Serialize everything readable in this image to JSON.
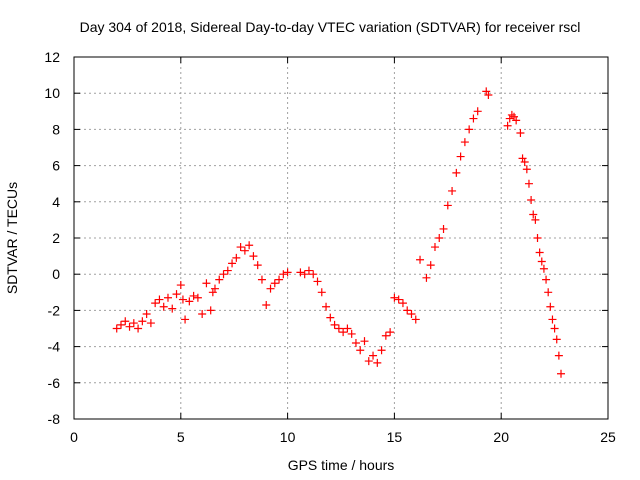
{
  "chart_data": {
    "type": "scatter",
    "title": "Day 304 of 2018, Sidereal Day-to-day VTEC variation (SDTVAR) for receiver rscl",
    "xlabel": "GPS time / hours",
    "ylabel": "SDTVAR / TECUs",
    "xlim": [
      0,
      25
    ],
    "ylim": [
      -8,
      12
    ],
    "xticks": [
      "0",
      "5",
      "10",
      "15",
      "20",
      "25"
    ],
    "yticks": [
      "-8",
      "-6",
      "-4",
      "-2",
      "0",
      "2",
      "4",
      "6",
      "8",
      "10",
      "12"
    ],
    "grid": true,
    "marker": "+",
    "series": [
      {
        "color": "#ff0000",
        "x": [
          2.0,
          2.2,
          2.4,
          2.6,
          2.8,
          3.0,
          3.2,
          3.4,
          3.6,
          3.8,
          4.0,
          4.2,
          4.4,
          4.6,
          4.8,
          5.0,
          5.1,
          5.2,
          5.4,
          5.6,
          5.8,
          6.0,
          6.2,
          6.4,
          6.5,
          6.6,
          6.8,
          7.0,
          7.2,
          7.4,
          7.6,
          7.8,
          8.0,
          8.2,
          8.4,
          8.6,
          8.8,
          9.0,
          9.2,
          9.4,
          9.6,
          9.8,
          10.0,
          10.6,
          10.8,
          11.0,
          11.2,
          11.4,
          11.6,
          11.8,
          12.0,
          12.2,
          12.4,
          12.6,
          12.8,
          13.0,
          13.2,
          13.4,
          13.6,
          13.8,
          14.0,
          14.2,
          14.4,
          14.6,
          14.8,
          15.0,
          15.2,
          15.4,
          15.6,
          15.8,
          16.0,
          16.2,
          16.5,
          16.7,
          16.9,
          17.1,
          17.3,
          17.5,
          17.7,
          17.9,
          18.1,
          18.3,
          18.5,
          18.7,
          18.9,
          19.3,
          19.4,
          20.3,
          20.4,
          20.5,
          20.6,
          20.7,
          20.9,
          21.0,
          21.1,
          21.2,
          21.3,
          21.4,
          21.5,
          21.6,
          21.7,
          21.8,
          21.9,
          22.0,
          22.1,
          22.2,
          22.3,
          22.4,
          22.5,
          22.6,
          22.7,
          22.8
        ],
        "y": [
          -3.0,
          -2.8,
          -2.6,
          -2.9,
          -2.7,
          -3.0,
          -2.6,
          -2.2,
          -2.7,
          -1.6,
          -1.4,
          -1.8,
          -1.3,
          -1.9,
          -1.1,
          -0.6,
          -1.4,
          -2.5,
          -1.5,
          -1.2,
          -1.3,
          -2.2,
          -0.5,
          -2.0,
          -1.0,
          -0.8,
          -0.3,
          0.0,
          0.2,
          0.6,
          0.9,
          1.5,
          1.3,
          1.6,
          1.0,
          0.5,
          -0.3,
          -1.7,
          -0.8,
          -0.5,
          -0.3,
          0.0,
          0.1,
          0.1,
          0.0,
          0.2,
          0.0,
          -0.4,
          -1.0,
          -1.8,
          -2.4,
          -2.8,
          -3.0,
          -3.2,
          -3.0,
          -3.3,
          -3.8,
          -4.2,
          -3.7,
          -4.8,
          -4.5,
          -4.9,
          -4.2,
          -3.4,
          -3.2,
          -1.3,
          -1.4,
          -1.6,
          -2.0,
          -2.2,
          -2.5,
          0.8,
          -0.2,
          0.5,
          1.5,
          2.0,
          2.5,
          3.8,
          4.6,
          5.6,
          6.5,
          7.3,
          8.0,
          8.6,
          9.0,
          10.1,
          9.9,
          8.2,
          8.6,
          8.8,
          8.7,
          8.5,
          7.8,
          6.4,
          6.2,
          5.8,
          5.0,
          4.1,
          3.3,
          3.0,
          2.0,
          1.2,
          0.7,
          0.3,
          -0.3,
          -1.0,
          -1.8,
          -2.5,
          -3.0,
          -3.6,
          -4.5,
          -5.5
        ]
      }
    ]
  }
}
